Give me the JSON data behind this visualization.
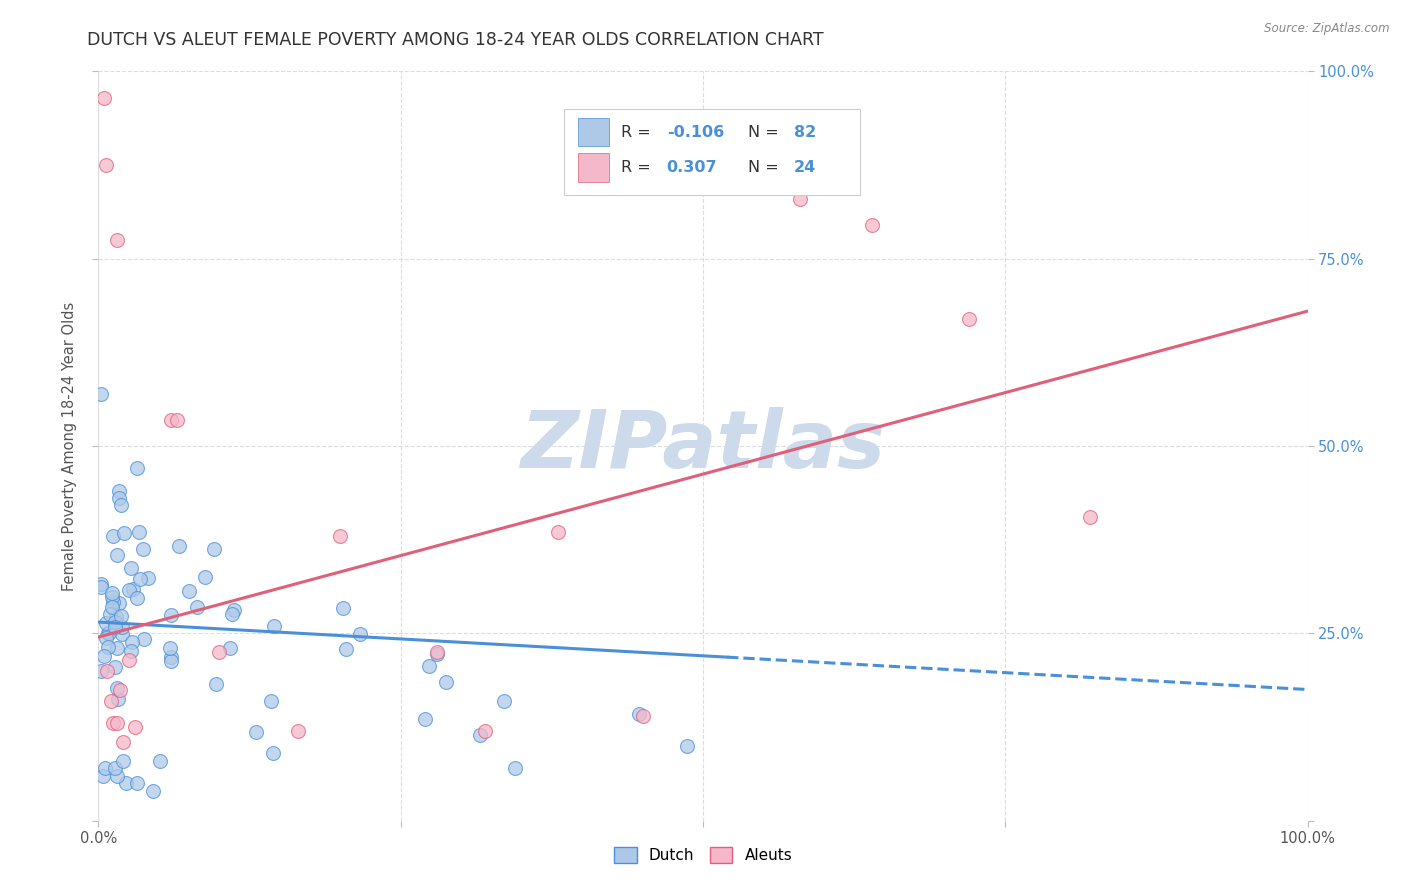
{
  "title": "DUTCH VS ALEUT FEMALE POVERTY AMONG 18-24 YEAR OLDS CORRELATION CHART",
  "source": "Source: ZipAtlas.com",
  "ylabel": "Female Poverty Among 18-24 Year Olds",
  "xlim": [
    0,
    1.0
  ],
  "ylim": [
    0,
    1.0
  ],
  "dutch_R": -0.106,
  "dutch_N": 82,
  "aleut_R": 0.307,
  "aleut_N": 24,
  "dutch_color": "#aec9e8",
  "aleut_color": "#f5b8ca",
  "dutch_line_color": "#4a90d9",
  "aleut_line_color": "#e0607a",
  "watermark_color": "#ccdaeb",
  "title_color": "#333333",
  "title_fontsize": 12.5,
  "axis_label_color": "#555555",
  "tick_label_color_right": "#4a90d9",
  "grid_color": "#dddddd",
  "background_color": "#ffffff",
  "legend_R_color": "#4a90d9",
  "legend_text_color": "#333333"
}
